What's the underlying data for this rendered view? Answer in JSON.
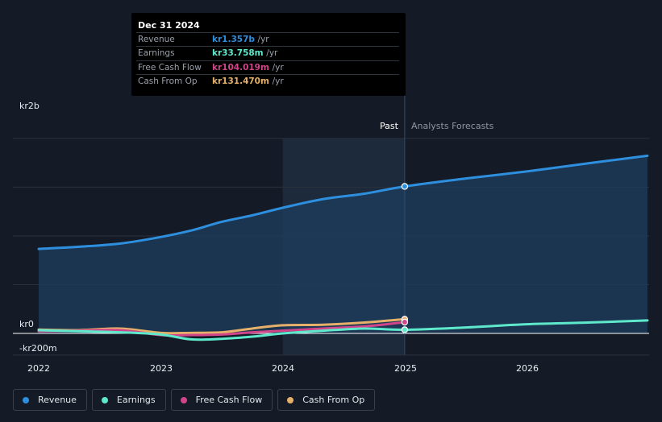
{
  "chart_data": {
    "type": "line",
    "x_ticks": [
      "2022",
      "2023",
      "2024",
      "2025",
      "2026"
    ],
    "y_labels": {
      "top": "kr2b",
      "zero": "kr0",
      "bottom": "-kr200m"
    },
    "ylim": [
      -200,
      1800
    ],
    "y_unit": "millions (kr)",
    "past_label": "Past",
    "forecast_label": "Analysts Forecasts",
    "divider_x": 2025.0,
    "past_shade_start": 2024.0,
    "series": [
      {
        "name": "Revenue",
        "color": "#2e8fdf",
        "area": true,
        "points": [
          [
            2022.0,
            780
          ],
          [
            2022.33,
            800
          ],
          [
            2022.67,
            830
          ],
          [
            2023.0,
            890
          ],
          [
            2023.25,
            950
          ],
          [
            2023.5,
            1030
          ],
          [
            2023.75,
            1090
          ],
          [
            2024.0,
            1160
          ],
          [
            2024.33,
            1240
          ],
          [
            2024.67,
            1290
          ],
          [
            2025.0,
            1357
          ],
          [
            2025.5,
            1430
          ],
          [
            2026.0,
            1495
          ],
          [
            2026.5,
            1570
          ],
          [
            2026.99,
            1640
          ]
        ]
      },
      {
        "name": "Earnings",
        "color": "#5ee8cc",
        "area": false,
        "points": [
          [
            2022.0,
            30
          ],
          [
            2022.33,
            20
          ],
          [
            2022.67,
            10
          ],
          [
            2023.0,
            -10
          ],
          [
            2023.25,
            -55
          ],
          [
            2023.5,
            -50
          ],
          [
            2023.75,
            -30
          ],
          [
            2024.0,
            0
          ],
          [
            2024.33,
            25
          ],
          [
            2024.67,
            45
          ],
          [
            2025.0,
            33.758
          ],
          [
            2025.5,
            55
          ],
          [
            2026.0,
            85
          ],
          [
            2026.5,
            100
          ],
          [
            2026.99,
            120
          ]
        ]
      },
      {
        "name": "Free Cash Flow",
        "color": "#d0458a",
        "area": false,
        "points": [
          [
            2022.0,
            20
          ],
          [
            2022.33,
            25
          ],
          [
            2022.67,
            30
          ],
          [
            2023.0,
            -15
          ],
          [
            2023.25,
            -15
          ],
          [
            2023.5,
            -10
          ],
          [
            2023.75,
            10
          ],
          [
            2024.0,
            25
          ],
          [
            2024.33,
            45
          ],
          [
            2024.67,
            65
          ],
          [
            2025.0,
            104.019
          ]
        ]
      },
      {
        "name": "Cash From Op",
        "color": "#e6b06a",
        "area": false,
        "points": [
          [
            2022.0,
            35
          ],
          [
            2022.33,
            30
          ],
          [
            2022.67,
            45
          ],
          [
            2023.0,
            5
          ],
          [
            2023.25,
            5
          ],
          [
            2023.5,
            10
          ],
          [
            2023.75,
            45
          ],
          [
            2024.0,
            75
          ],
          [
            2024.33,
            80
          ],
          [
            2024.67,
            100
          ],
          [
            2025.0,
            131.47
          ]
        ]
      }
    ]
  },
  "tooltip": {
    "date": "Dec 31 2024",
    "unit": "/yr",
    "rows": [
      {
        "name": "Revenue",
        "value": "kr1.357b",
        "color": "#2e8fdf"
      },
      {
        "name": "Earnings",
        "value": "kr33.758m",
        "color": "#5ee8cc"
      },
      {
        "name": "Free Cash Flow",
        "value": "kr104.019m",
        "color": "#d0458a"
      },
      {
        "name": "Cash From Op",
        "value": "kr131.470m",
        "color": "#e6b06a"
      }
    ]
  },
  "legend": [
    {
      "label": "Revenue",
      "color": "#2e8fdf"
    },
    {
      "label": "Earnings",
      "color": "#5ee8cc"
    },
    {
      "label": "Free Cash Flow",
      "color": "#d0458a"
    },
    {
      "label": "Cash From Op",
      "color": "#e6b06a"
    }
  ]
}
